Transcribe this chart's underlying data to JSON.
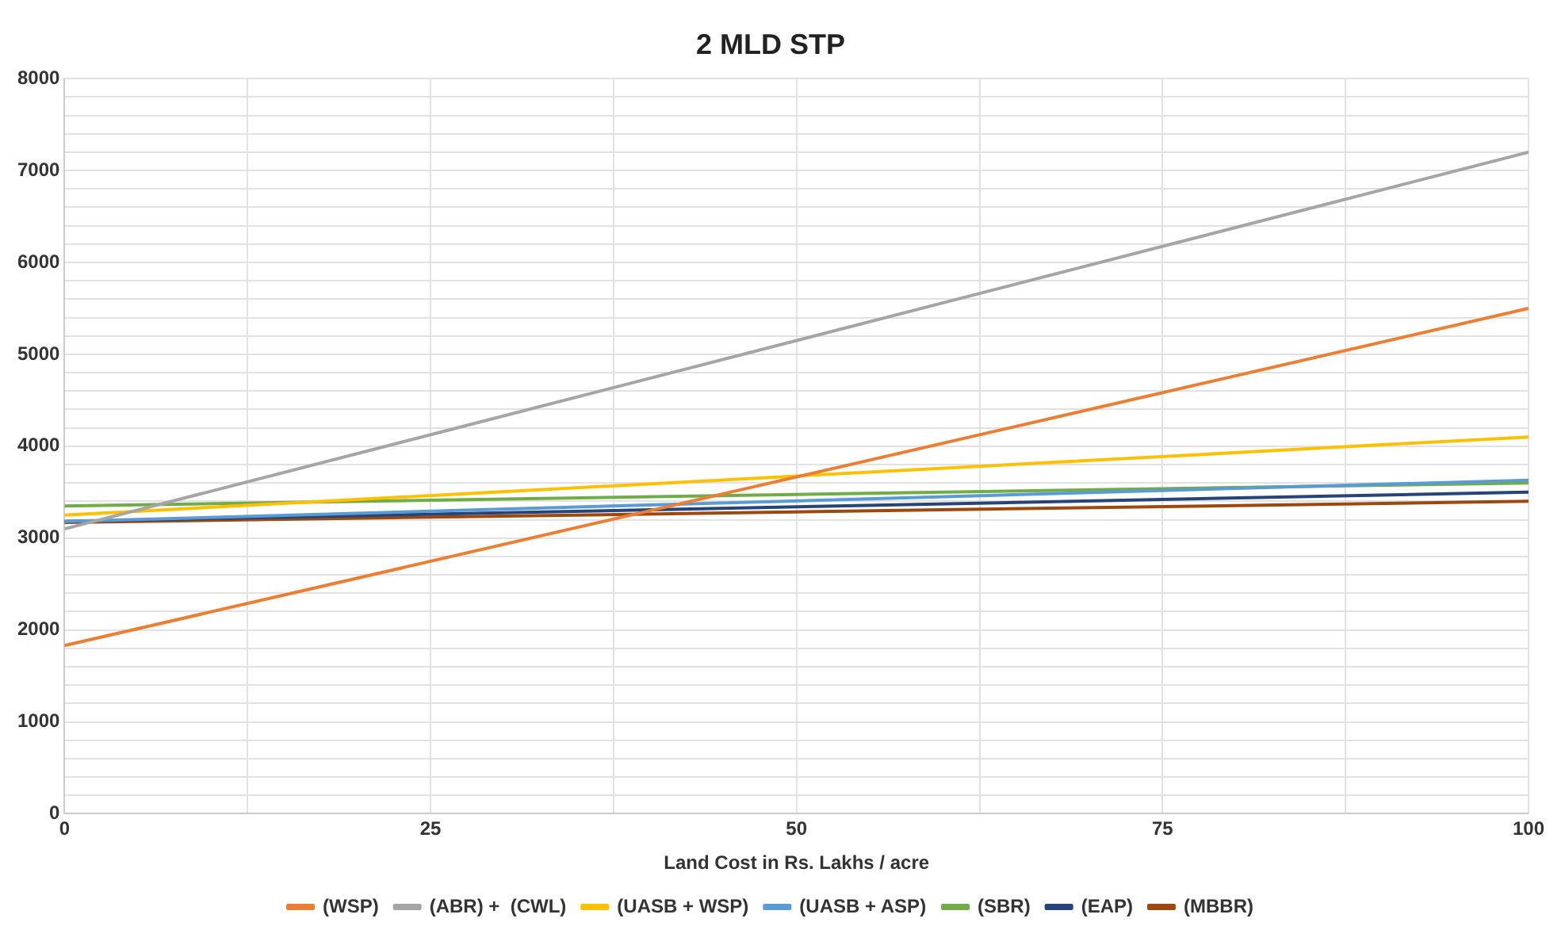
{
  "chart_data": {
    "type": "line",
    "title": "2 MLD STP",
    "xlabel": "Land Cost in Rs. Lakhs / acre",
    "x": [
      0,
      100
    ],
    "xlim": [
      0,
      100
    ],
    "xticks": [
      0,
      {
        "value": 12.5,
        "label": null
      },
      25,
      {
        "value": 37.5,
        "label": null
      },
      50,
      {
        "value": 62.5,
        "label": null
      },
      75,
      {
        "value": 87.5,
        "label": null
      },
      100
    ],
    "ylim": [
      0,
      8000
    ],
    "yticks": [
      0,
      {
        "value": 200,
        "label": null
      },
      {
        "value": 400,
        "label": null
      },
      {
        "value": 600,
        "label": null
      },
      {
        "value": 800,
        "label": null
      },
      1000,
      {
        "value": 1200,
        "label": null
      },
      {
        "value": 1400,
        "label": null
      },
      {
        "value": 1600,
        "label": null
      },
      {
        "value": 1800,
        "label": null
      },
      2000,
      {
        "value": 2200,
        "label": null
      },
      {
        "value": 2400,
        "label": null
      },
      {
        "value": 2600,
        "label": null
      },
      {
        "value": 2800,
        "label": null
      },
      3000,
      {
        "value": 3200,
        "label": null
      },
      {
        "value": 3400,
        "label": null
      },
      {
        "value": 3600,
        "label": null
      },
      {
        "value": 3800,
        "label": null
      },
      4000,
      {
        "value": 4200,
        "label": null
      },
      {
        "value": 4400,
        "label": null
      },
      {
        "value": 4600,
        "label": null
      },
      {
        "value": 4800,
        "label": null
      },
      5000,
      {
        "value": 5200,
        "label": null
      },
      {
        "value": 5400,
        "label": null
      },
      {
        "value": 5600,
        "label": null
      },
      {
        "value": 5800,
        "label": null
      },
      6000,
      {
        "value": 6200,
        "label": null
      },
      {
        "value": 6400,
        "label": null
      },
      {
        "value": 6600,
        "label": null
      },
      {
        "value": 6800,
        "label": null
      },
      7000,
      {
        "value": 7200,
        "label": null
      },
      {
        "value": 7400,
        "label": null
      },
      {
        "value": 7600,
        "label": null
      },
      {
        "value": 7800,
        "label": null
      },
      8000
    ],
    "grid": true,
    "legend": "bottom",
    "marker": "none",
    "line_style": "solid",
    "series": [
      {
        "name": "(WSP)",
        "color": "#ed7d31",
        "values": [
          1830,
          5500
        ]
      },
      {
        "name": "(ABR) +  (CWL)",
        "color": "#a5a5a5",
        "values": [
          3100,
          7200
        ]
      },
      {
        "name": "(UASB + WSP)",
        "color": "#ffc000",
        "values": [
          3250,
          4100
        ]
      },
      {
        "name": "(UASB + ASP)",
        "color": "#5b9bd5",
        "values": [
          3180,
          3630
        ]
      },
      {
        "name": "(SBR)",
        "color": "#70ad47",
        "values": [
          3350,
          3600
        ]
      },
      {
        "name": "(EAP)",
        "color": "#264478",
        "values": [
          3180,
          3500
        ]
      },
      {
        "name": "(MBBR)",
        "color": "#9e480e",
        "values": [
          3170,
          3400
        ]
      }
    ]
  }
}
